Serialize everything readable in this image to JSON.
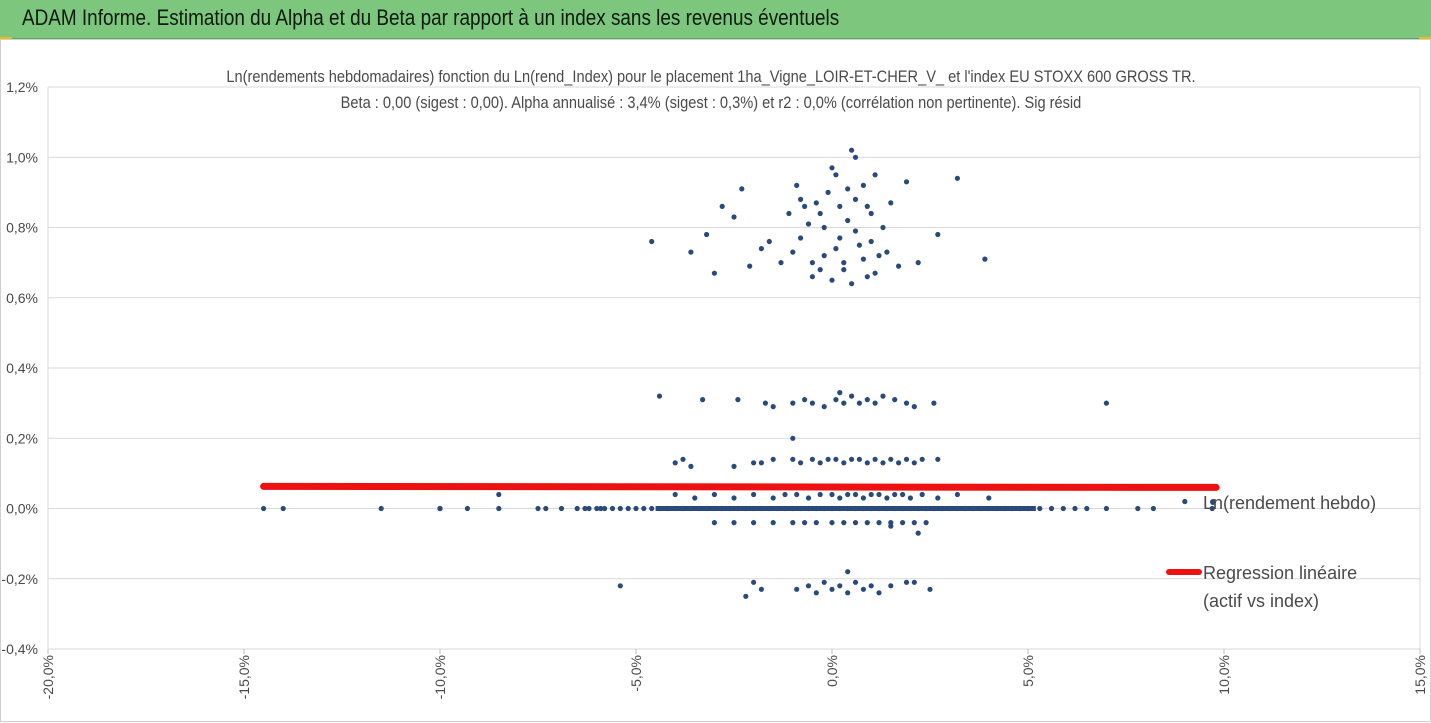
{
  "header": {
    "title": "ADAM Informe. Estimation du Alpha et du Beta par rapport à un index sans les revenus éventuels",
    "accent_color": "#7cc67e",
    "corner_color": "#f2b81a"
  },
  "chart_data": {
    "type": "scatter",
    "title": "Ln(rendements hebdomadaires) fonction du Ln(rend_Index) pour le placement 1ha_Vigne_LOIR-ET-CHER_V_ et l'index EU STOXX 600 GROSS TR.",
    "subtitle": "Beta : 0,00 (sigest : 0,00). Alpha annualisé : 3,4% (sigest : 0,3%) et r2 : 0,0% (corrélation non pertinente). Sig résid",
    "xlim": [
      -20,
      15
    ],
    "ylim": [
      -0.4,
      1.2
    ],
    "x_ticks": [
      -20,
      -15,
      -10,
      -5,
      0,
      5,
      10,
      15
    ],
    "y_ticks": [
      -0.4,
      -0.2,
      0,
      0.2,
      0.4,
      0.6,
      0.8,
      1.0,
      1.2
    ],
    "x_tick_labels": [
      "-20,0%",
      "-15,0%",
      "-10,0%",
      "-5,0%",
      "0,0%",
      "5,0%",
      "10,0%",
      "15,0%"
    ],
    "y_tick_labels": [
      "-0,4%",
      "-0,2%",
      "0,0%",
      "0,2%",
      "0,4%",
      "0,6%",
      "0,8%",
      "1,0%",
      "1,2%"
    ],
    "grid": "horizontal",
    "legend_position": "right",
    "series": [
      {
        "name": "Ln(rendement hebdo)",
        "kind": "scatter",
        "color": "#2a4a7c",
        "points": [
          [
            -14.5,
            0
          ],
          [
            -14,
            0
          ],
          [
            -11.5,
            0
          ],
          [
            -10,
            0
          ],
          [
            -10,
            0
          ],
          [
            -9.3,
            0
          ],
          [
            -8.5,
            0
          ],
          [
            -7.5,
            0
          ],
          [
            -7.3,
            0
          ],
          [
            -6.9,
            0
          ],
          [
            -6.5,
            0
          ],
          [
            -6.3,
            0
          ],
          [
            -6.2,
            0
          ],
          [
            -6.0,
            0
          ],
          [
            -5.9,
            0
          ],
          [
            -5.8,
            0
          ],
          [
            -5.6,
            0
          ],
          [
            -5.4,
            0
          ],
          [
            -5.2,
            0
          ],
          [
            -5.0,
            0
          ],
          [
            -4.8,
            0
          ],
          [
            -4.6,
            0
          ],
          [
            -4.4,
            0
          ],
          [
            -4.2,
            0
          ],
          [
            -4.0,
            0
          ],
          [
            -3.8,
            0
          ],
          [
            -3.6,
            0
          ],
          [
            -3.4,
            0
          ],
          [
            -3.2,
            0
          ],
          [
            -3.0,
            0
          ],
          [
            -2.8,
            0
          ],
          [
            -2.6,
            0
          ],
          [
            -2.4,
            0
          ],
          [
            -2.2,
            0
          ],
          [
            -2.0,
            0
          ],
          [
            -1.8,
            0
          ],
          [
            -1.6,
            0
          ],
          [
            -1.4,
            0
          ],
          [
            -1.2,
            0
          ],
          [
            -1.0,
            0
          ],
          [
            -0.8,
            0
          ],
          [
            -0.6,
            0
          ],
          [
            -0.4,
            0
          ],
          [
            -0.2,
            0
          ],
          [
            0,
            0
          ],
          [
            0.2,
            0
          ],
          [
            0.4,
            0
          ],
          [
            0.6,
            0
          ],
          [
            0.8,
            0
          ],
          [
            1.0,
            0
          ],
          [
            1.2,
            0
          ],
          [
            1.4,
            0
          ],
          [
            1.6,
            0
          ],
          [
            1.8,
            0
          ],
          [
            2.0,
            0
          ],
          [
            2.2,
            0
          ],
          [
            2.4,
            0
          ],
          [
            2.6,
            0
          ],
          [
            2.8,
            0
          ],
          [
            3.0,
            0
          ],
          [
            3.2,
            0
          ],
          [
            3.4,
            0
          ],
          [
            3.6,
            0
          ],
          [
            3.8,
            0
          ],
          [
            4.0,
            0
          ],
          [
            4.2,
            0
          ],
          [
            4.4,
            0
          ],
          [
            4.6,
            0
          ],
          [
            4.8,
            0
          ],
          [
            5.0,
            0
          ],
          [
            5.3,
            0
          ],
          [
            5.6,
            0
          ],
          [
            5.9,
            0
          ],
          [
            6.2,
            0
          ],
          [
            6.5,
            0
          ],
          [
            7.0,
            0
          ],
          [
            7.8,
            0
          ],
          [
            8.2,
            0
          ],
          [
            9.0,
            0.02
          ],
          [
            9.7,
            0
          ],
          [
            -8.5,
            0.04
          ],
          [
            -4.0,
            0.04
          ],
          [
            -3.5,
            0.03
          ],
          [
            -3.0,
            0.04
          ],
          [
            -2.5,
            0.03
          ],
          [
            -2.0,
            0.04
          ],
          [
            -1.5,
            0.03
          ],
          [
            -1.2,
            0.04
          ],
          [
            -0.9,
            0.04
          ],
          [
            -0.6,
            0.03
          ],
          [
            -0.3,
            0.04
          ],
          [
            0.0,
            0.04
          ],
          [
            0.2,
            0.03
          ],
          [
            0.4,
            0.04
          ],
          [
            0.6,
            0.04
          ],
          [
            0.8,
            0.03
          ],
          [
            1.0,
            0.04
          ],
          [
            1.2,
            0.04
          ],
          [
            1.4,
            0.03
          ],
          [
            1.6,
            0.04
          ],
          [
            1.8,
            0.04
          ],
          [
            2.0,
            0.03
          ],
          [
            2.3,
            0.04
          ],
          [
            2.7,
            0.03
          ],
          [
            3.2,
            0.04
          ],
          [
            4.0,
            0.03
          ],
          [
            -3.0,
            -0.04
          ],
          [
            -2.5,
            -0.04
          ],
          [
            -2.0,
            -0.04
          ],
          [
            -1.5,
            -0.04
          ],
          [
            -1.0,
            -0.04
          ],
          [
            -0.7,
            -0.04
          ],
          [
            -0.4,
            -0.04
          ],
          [
            0.0,
            -0.04
          ],
          [
            0.3,
            -0.04
          ],
          [
            0.6,
            -0.04
          ],
          [
            0.9,
            -0.04
          ],
          [
            1.2,
            -0.04
          ],
          [
            1.5,
            -0.04
          ],
          [
            1.8,
            -0.04
          ],
          [
            2.1,
            -0.04
          ],
          [
            2.4,
            -0.04
          ],
          [
            2.2,
            -0.07
          ],
          [
            1.5,
            -0.05
          ],
          [
            -4.0,
            0.13
          ],
          [
            -3.8,
            0.14
          ],
          [
            -3.6,
            0.12
          ],
          [
            -2.5,
            0.12
          ],
          [
            -2.0,
            0.13
          ],
          [
            -1.8,
            0.13
          ],
          [
            -1.5,
            0.14
          ],
          [
            -1.0,
            0.14
          ],
          [
            -0.8,
            0.13
          ],
          [
            -0.5,
            0.14
          ],
          [
            -0.3,
            0.13
          ],
          [
            -0.1,
            0.14
          ],
          [
            0.1,
            0.14
          ],
          [
            0.3,
            0.13
          ],
          [
            0.5,
            0.14
          ],
          [
            0.7,
            0.14
          ],
          [
            0.9,
            0.13
          ],
          [
            1.1,
            0.14
          ],
          [
            1.3,
            0.13
          ],
          [
            1.5,
            0.14
          ],
          [
            1.7,
            0.13
          ],
          [
            1.9,
            0.14
          ],
          [
            2.1,
            0.13
          ],
          [
            2.3,
            0.14
          ],
          [
            2.7,
            0.14
          ],
          [
            -1.0,
            0.2
          ],
          [
            -4.4,
            0.32
          ],
          [
            -3.3,
            0.31
          ],
          [
            -2.4,
            0.31
          ],
          [
            -1.7,
            0.3
          ],
          [
            -1.5,
            0.29
          ],
          [
            -1.0,
            0.3
          ],
          [
            -0.7,
            0.31
          ],
          [
            -0.5,
            0.3
          ],
          [
            -0.2,
            0.29
          ],
          [
            0.1,
            0.31
          ],
          [
            0.3,
            0.3
          ],
          [
            0.5,
            0.32
          ],
          [
            0.7,
            0.3
          ],
          [
            0.9,
            0.31
          ],
          [
            1.1,
            0.3
          ],
          [
            1.3,
            0.32
          ],
          [
            1.6,
            0.31
          ],
          [
            1.9,
            0.3
          ],
          [
            2.1,
            0.29
          ],
          [
            2.6,
            0.3
          ],
          [
            7.0,
            0.3
          ],
          [
            0.2,
            0.33
          ],
          [
            -5.4,
            -0.22
          ],
          [
            -2.2,
            -0.25
          ],
          [
            -2.0,
            -0.21
          ],
          [
            -1.8,
            -0.23
          ],
          [
            -0.9,
            -0.23
          ],
          [
            -0.6,
            -0.22
          ],
          [
            -0.4,
            -0.24
          ],
          [
            -0.2,
            -0.21
          ],
          [
            0.0,
            -0.23
          ],
          [
            0.2,
            -0.22
          ],
          [
            0.4,
            -0.24
          ],
          [
            0.6,
            -0.21
          ],
          [
            0.8,
            -0.23
          ],
          [
            1.0,
            -0.22
          ],
          [
            1.2,
            -0.24
          ],
          [
            1.5,
            -0.22
          ],
          [
            1.9,
            -0.21
          ],
          [
            2.1,
            -0.21
          ],
          [
            2.5,
            -0.23
          ],
          [
            0.4,
            -0.18
          ],
          [
            -4.6,
            0.76
          ],
          [
            -3.6,
            0.73
          ],
          [
            -3.2,
            0.78
          ],
          [
            -3.0,
            0.67
          ],
          [
            -2.8,
            0.86
          ],
          [
            -2.5,
            0.83
          ],
          [
            -2.3,
            0.91
          ],
          [
            -2.1,
            0.69
          ],
          [
            -1.8,
            0.74
          ],
          [
            -1.6,
            0.76
          ],
          [
            -1.3,
            0.7
          ],
          [
            -1.1,
            0.84
          ],
          [
            -0.9,
            0.92
          ],
          [
            -0.8,
            0.77
          ],
          [
            -0.6,
            0.81
          ],
          [
            -0.4,
            0.87
          ],
          [
            -0.3,
            0.68
          ],
          [
            -0.1,
            0.9
          ],
          [
            0.0,
            0.97
          ],
          [
            0.1,
            0.74
          ],
          [
            0.2,
            0.86
          ],
          [
            0.3,
            0.7
          ],
          [
            0.4,
            0.82
          ],
          [
            0.5,
            1.02
          ],
          [
            0.6,
            0.88
          ],
          [
            0.7,
            0.75
          ],
          [
            0.8,
            0.92
          ],
          [
            0.9,
            0.66
          ],
          [
            1.0,
            0.84
          ],
          [
            1.1,
            0.95
          ],
          [
            1.2,
            0.72
          ],
          [
            1.3,
            0.8
          ],
          [
            1.5,
            0.87
          ],
          [
            1.7,
            0.69
          ],
          [
            1.9,
            0.93
          ],
          [
            2.2,
            0.7
          ],
          [
            2.7,
            0.78
          ],
          [
            3.2,
            0.94
          ],
          [
            3.9,
            0.71
          ],
          [
            -0.5,
            0.66
          ],
          [
            0.0,
            0.65
          ],
          [
            0.3,
            0.68
          ],
          [
            -0.2,
            0.72
          ],
          [
            0.6,
            0.79
          ],
          [
            -0.7,
            0.86
          ],
          [
            1.1,
            0.67
          ],
          [
            0.8,
            0.71
          ],
          [
            -1.0,
            0.73
          ],
          [
            0.4,
            0.91
          ],
          [
            -0.3,
            0.84
          ],
          [
            0.9,
            0.86
          ],
          [
            0.2,
            0.77
          ],
          [
            -0.5,
            0.7
          ],
          [
            1.4,
            0.73
          ],
          [
            0.6,
            1.0
          ],
          [
            0.1,
            0.95
          ],
          [
            -0.8,
            0.88
          ],
          [
            1.0,
            0.76
          ],
          [
            0.5,
            0.64
          ],
          [
            -0.2,
            0.8
          ]
        ]
      },
      {
        "name": "Regression linéaire\n(actif vs index)",
        "kind": "line",
        "color": "#ee1111",
        "points": [
          [
            -14.5,
            0.063
          ],
          [
            9.8,
            0.06
          ]
        ]
      }
    ],
    "legend": [
      {
        "label": "Ln(rendement hebdo)",
        "marker": "dot",
        "color": "#2a4a7c"
      },
      {
        "label_lines": [
          "Regression linéaire",
          "(actif vs index)"
        ],
        "marker": "line",
        "color": "#ee1111"
      }
    ]
  }
}
